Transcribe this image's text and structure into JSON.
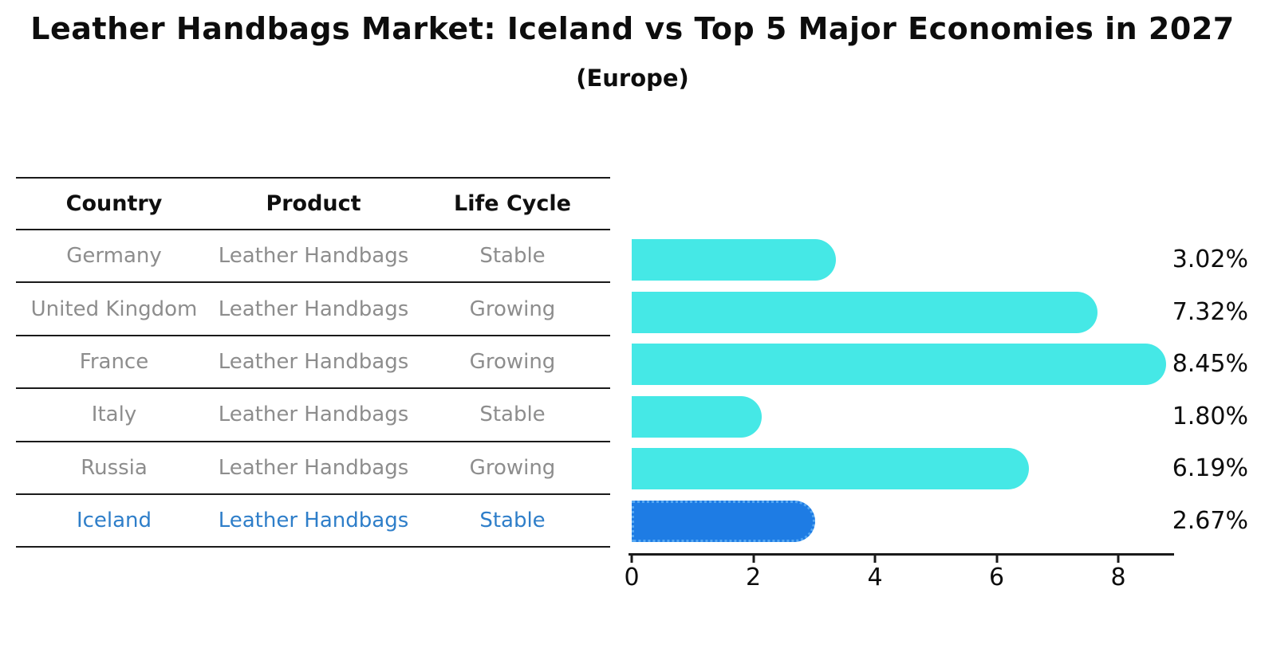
{
  "title": "Leather Handbags Market: Iceland vs Top 5 Major Economies in 2027",
  "subtitle": "(Europe)",
  "table": {
    "headers": [
      "Country",
      "Product",
      "Life Cycle"
    ],
    "rows": [
      {
        "country": "Germany",
        "product": "Leather Handbags",
        "life_cycle": "Stable",
        "highlight": false
      },
      {
        "country": "United Kingdom",
        "product": "Leather Handbags",
        "life_cycle": "Growing",
        "highlight": false
      },
      {
        "country": "France",
        "product": "Leather Handbags",
        "life_cycle": "Growing",
        "highlight": false
      },
      {
        "country": "Italy",
        "product": "Leather Handbags",
        "life_cycle": "Stable",
        "highlight": false
      },
      {
        "country": "Russia",
        "product": "Leather Handbags",
        "life_cycle": "Growing",
        "highlight": false
      },
      {
        "country": "Iceland",
        "product": "Leather Handbags",
        "life_cycle": "Stable",
        "highlight": true
      }
    ]
  },
  "chart_data": {
    "type": "bar",
    "orientation": "horizontal",
    "categories": [
      "Germany",
      "United Kingdom",
      "France",
      "Italy",
      "Russia",
      "Iceland"
    ],
    "values": [
      3.02,
      7.32,
      8.45,
      1.8,
      6.19,
      2.67
    ],
    "value_labels": [
      "3.02%",
      "7.32%",
      "8.45%",
      "1.80%",
      "6.19%",
      "2.67%"
    ],
    "x_ticks": [
      "0",
      "2",
      "4",
      "6",
      "8"
    ],
    "x_tick_values": [
      0,
      2,
      4,
      6,
      8
    ],
    "xlim": [
      0,
      8.9
    ],
    "grid": false,
    "legend": "none",
    "highlight_index": 5,
    "colors": {
      "bar": "#45e8e6",
      "highlight_bar": "#1e7ce4",
      "highlight_bar_edge": "#55a7f2",
      "highlight_text": "#2e7ec9",
      "row_text": "#8d8d8d",
      "header_text": "#0f0f0f",
      "axis": "#1a1a1a"
    }
  }
}
